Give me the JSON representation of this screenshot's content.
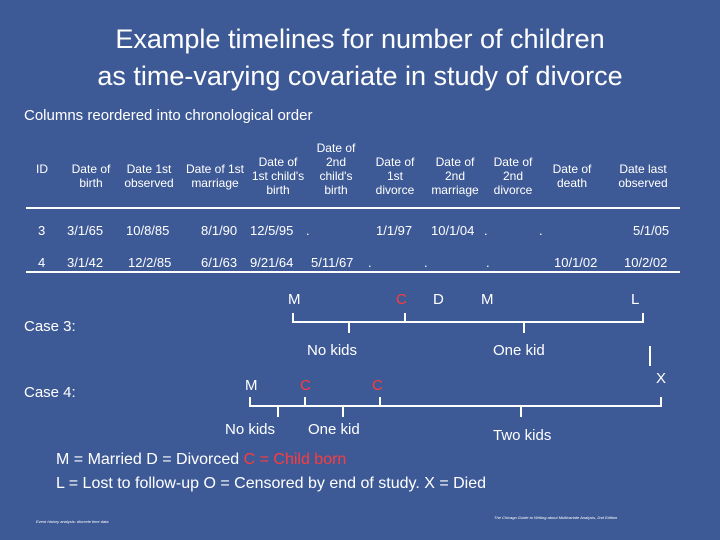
{
  "title": {
    "line1": "Example timelines for number of children",
    "line2": "as time-varying covariate in study of divorce"
  },
  "subtitle": "Columns reordered into chronological order",
  "table": {
    "headers": [
      {
        "l1": "",
        "l2": "",
        "l3": "ID"
      },
      {
        "l1": "",
        "l2": "Date of",
        "l3": "birth"
      },
      {
        "l1": "",
        "l2": "Date 1st",
        "l3": "observed"
      },
      {
        "l1": "",
        "l2": "Date of 1st",
        "l3": "marriage"
      },
      {
        "l1": "Date of",
        "l2": "1st child's",
        "l3": "birth"
      },
      {
        "l1": "Date of",
        "l2": "2nd",
        "l3": "child's",
        "l4": "birth"
      },
      {
        "l1": "Date of",
        "l2": "1st",
        "l3": "divorce"
      },
      {
        "l1": "Date of",
        "l2": "2nd",
        "l3": "marriage"
      },
      {
        "l1": "Date of",
        "l2": "2nd",
        "l3": "divorce"
      },
      {
        "l1": "",
        "l2": "Date of",
        "l3": "death"
      },
      {
        "l1": "",
        "l2": "Date last",
        "l3": "observed"
      }
    ],
    "row3": {
      "id": "3",
      "birth": "3/1/65",
      "first_observed": "10/8/85",
      "first_marriage": "8/1/90",
      "first_child": "12/5/95",
      "dot_a": ".",
      "first_divorce": "1/1/97",
      "second_marriage": "10/1/04",
      "dot_b": ".",
      "dot_c": ".",
      "last_observed": "5/1/05"
    },
    "row4": {
      "id": "4",
      "birth": "3/1/42",
      "first_observed": "12/2/85",
      "first_marriage": "6/1/63",
      "first_child": "9/21/64",
      "second_child": "5/11/67",
      "dot_a": ".",
      "dot_b": ".",
      "dot_c": ".",
      "death": "10/1/02",
      "last_observed": "10/2/02"
    }
  },
  "case3": {
    "label": "Case 3:",
    "events": {
      "m": "M",
      "c": "C",
      "d": "D",
      "m2": "M",
      "l": "L"
    },
    "no_kids": "No kids",
    "one_kid": "One kid"
  },
  "case4": {
    "label": "Case 4:",
    "events": {
      "m": "M",
      "c1": "C",
      "c2": "C",
      "x": "X"
    },
    "no_kids": "No kids",
    "one_kid": "One kid",
    "two_kids": "Two kids"
  },
  "legend": {
    "l1_part1": "M = Married  D = Divorced ",
    "l1_part2": "C = Child born",
    "l2": "L = Lost to follow-up O = Censored by end of study. X = Died"
  },
  "footer": {
    "left": "Event history analysis: discrete time data",
    "right": "The Chicago Guide to Writing about Multivariate Analysis, 2nd Edition"
  },
  "colors": {
    "background": "#3e5a96",
    "text": "#ffffff",
    "accent": "#ff3b3b"
  }
}
